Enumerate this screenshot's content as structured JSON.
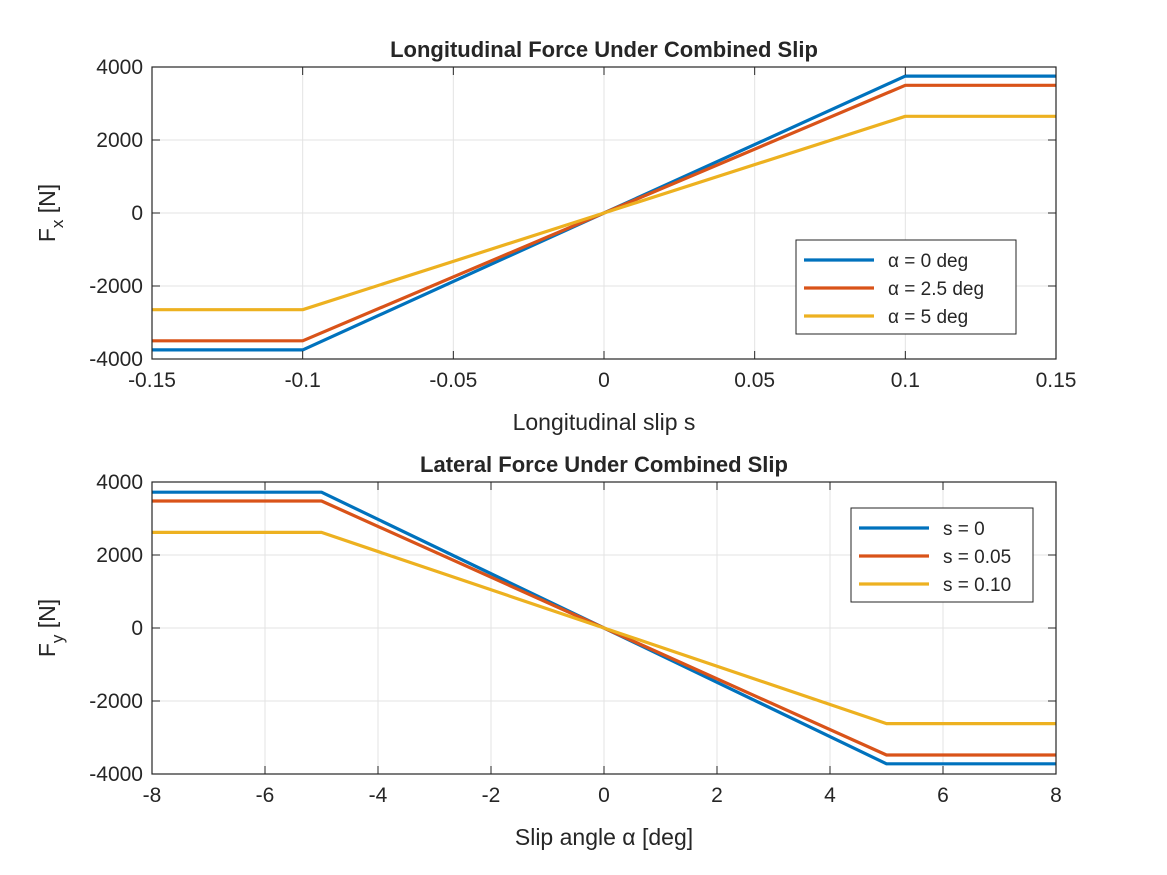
{
  "chart_data": [
    {
      "type": "line",
      "title": "Longitudinal Force Under Combined Slip",
      "xlabel": "Longitudinal slip s",
      "ylabel": {
        "main": "F",
        "sub": "x",
        "unit": " [N]"
      },
      "xlim": [
        -0.15,
        0.15
      ],
      "ylim": [
        -4000,
        4000
      ],
      "xticks": [
        "-0.15",
        "-0.1",
        "-0.05",
        "0",
        "0.05",
        "0.1",
        "0.15"
      ],
      "yticks": [
        "-4000",
        "-2000",
        "0",
        "2000",
        "4000"
      ],
      "grid": true,
      "legend_position": "bottom-right",
      "series": [
        {
          "name": "α = 0 deg",
          "color": "#0072BD",
          "x": [
            -0.15,
            -0.1,
            0,
            0.1,
            0.15
          ],
          "y": [
            -3750,
            -3750,
            0,
            3750,
            3750
          ]
        },
        {
          "name": "α = 2.5 deg",
          "color": "#D95319",
          "x": [
            -0.15,
            -0.1,
            0,
            0.1,
            0.15
          ],
          "y": [
            -3500,
            -3500,
            0,
            3500,
            3500
          ]
        },
        {
          "name": "α = 5 deg",
          "color": "#EDB120",
          "x": [
            -0.15,
            -0.1,
            0,
            0.1,
            0.15
          ],
          "y": [
            -2650,
            -2650,
            0,
            2650,
            2650
          ]
        }
      ]
    },
    {
      "type": "line",
      "title": "Lateral Force Under Combined Slip",
      "xlabel": "Slip angle α [deg]",
      "ylabel": {
        "main": "F",
        "sub": "y",
        "unit": " [N]"
      },
      "xlim": [
        -8,
        8
      ],
      "ylim": [
        -4000,
        4000
      ],
      "xticks": [
        "-8",
        "-6",
        "-4",
        "-2",
        "0",
        "2",
        "4",
        "6",
        "8"
      ],
      "yticks": [
        "-4000",
        "-2000",
        "0",
        "2000",
        "4000"
      ],
      "grid": true,
      "legend_position": "top-right",
      "series": [
        {
          "name": "s = 0",
          "color": "#0072BD",
          "x": [
            -8,
            -5,
            0,
            5,
            8
          ],
          "y": [
            3720,
            3720,
            0,
            -3720,
            -3720
          ]
        },
        {
          "name": "s = 0.05",
          "color": "#D95319",
          "x": [
            -8,
            -5,
            0,
            5,
            8
          ],
          "y": [
            3480,
            3480,
            0,
            -3480,
            -3480
          ]
        },
        {
          "name": "s = 0.10",
          "color": "#EDB120",
          "x": [
            -8,
            -5,
            0,
            5,
            8
          ],
          "y": [
            2620,
            2620,
            0,
            -2620,
            -2620
          ]
        }
      ]
    }
  ]
}
